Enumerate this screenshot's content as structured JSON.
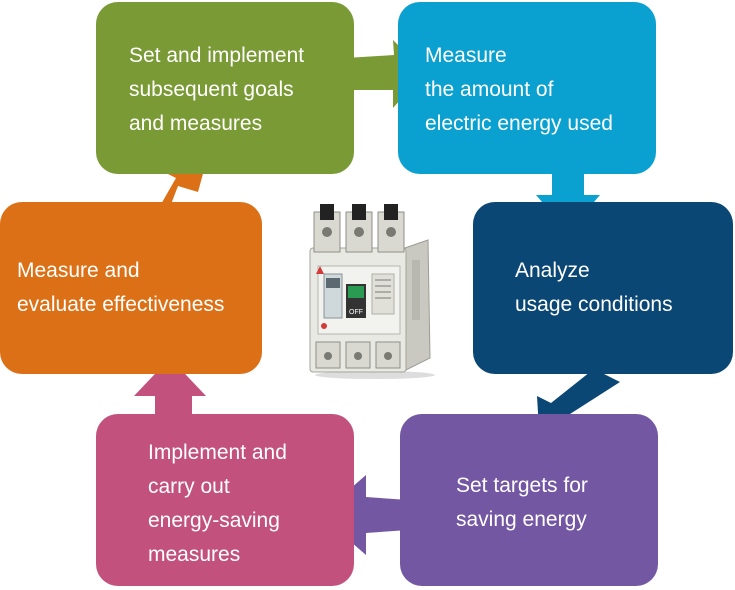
{
  "steps": [
    {
      "lines": [
        "Set and implement",
        "subsequent goals",
        "and measures"
      ],
      "color": "#7a9a35"
    },
    {
      "lines": [
        "Measure",
        "the amount of",
        "electric energy used"
      ],
      "color": "#0aa0cf"
    },
    {
      "lines": [
        "Analyze",
        "usage conditions"
      ],
      "color": "#0b4774"
    },
    {
      "lines": [
        "Set targets for",
        "saving energy"
      ],
      "color": "#7357a3"
    },
    {
      "lines": [
        "Implement and",
        "carry out",
        "energy-saving",
        "measures"
      ],
      "color": "#c2527d"
    },
    {
      "lines": [
        "Measure and",
        "evaluate effectiveness"
      ],
      "color": "#dc7016"
    }
  ],
  "center_image": {
    "icon": "circuit-breaker-icon",
    "labels": [
      "OFF"
    ]
  }
}
